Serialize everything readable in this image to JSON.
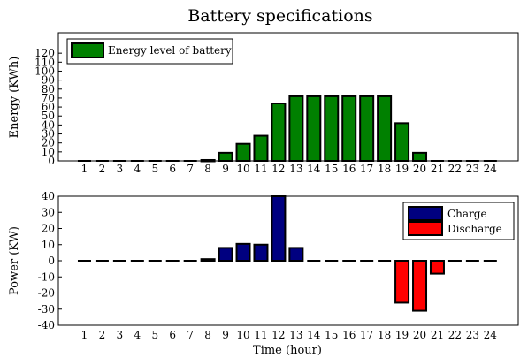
{
  "chart_data": [
    {
      "type": "bar",
      "title": "Battery specifications",
      "ylabel": "Energy (KWh)",
      "xlabel": "",
      "categories": [
        "1",
        "2",
        "3",
        "4",
        "5",
        "6",
        "7",
        "8",
        "9",
        "10",
        "11",
        "12",
        "13",
        "14",
        "15",
        "16",
        "17",
        "18",
        "19",
        "20",
        "21",
        "22",
        "23",
        "24"
      ],
      "ylim": [
        0,
        130
      ],
      "yticks": [
        0,
        10,
        20,
        30,
        40,
        50,
        60,
        70,
        80,
        90,
        100,
        110,
        120
      ],
      "series": [
        {
          "name": "Energy level of battery",
          "color": "#008000",
          "values": [
            0,
            0,
            0,
            0,
            0,
            0,
            0,
            1,
            9,
            19,
            28,
            64,
            72,
            72,
            72,
            72,
            72,
            72,
            42,
            9,
            0,
            0,
            0,
            0
          ]
        }
      ],
      "legend_position": "top-left",
      "grid": false
    },
    {
      "type": "bar",
      "title": "",
      "ylabel": "Power (KW)",
      "xlabel": "Time (hour)",
      "categories": [
        "1",
        "2",
        "3",
        "4",
        "5",
        "6",
        "7",
        "8",
        "9",
        "10",
        "11",
        "12",
        "13",
        "14",
        "15",
        "16",
        "17",
        "18",
        "19",
        "20",
        "21",
        "22",
        "23",
        "24"
      ],
      "ylim": [
        -40,
        40
      ],
      "yticks": [
        -40,
        -30,
        -20,
        -10,
        0,
        10,
        20,
        30,
        40
      ],
      "series": [
        {
          "name": "Charge",
          "color": "#000080",
          "values": [
            0,
            0,
            0,
            0,
            0,
            0,
            0,
            1,
            8,
            10.5,
            10,
            40,
            8,
            0,
            0,
            0,
            0,
            0,
            0,
            0,
            0,
            0,
            0,
            0
          ]
        },
        {
          "name": "Discharge",
          "color": "#ff0000",
          "values": [
            0,
            0,
            0,
            0,
            0,
            0,
            0,
            0,
            0,
            0,
            0,
            0,
            0,
            0,
            0,
            0,
            0,
            0,
            -26,
            -31,
            -8,
            0,
            0,
            0
          ]
        }
      ],
      "legend_position": "top-right",
      "grid": false
    }
  ]
}
